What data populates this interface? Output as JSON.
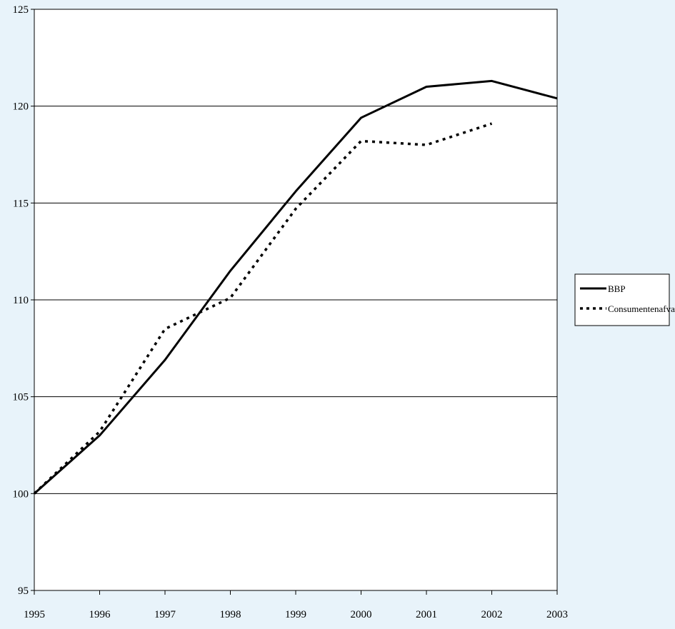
{
  "chart_data": {
    "type": "line",
    "title": "",
    "xlabel": "",
    "ylabel": "",
    "x": [
      1995,
      1996,
      1997,
      1998,
      1999,
      2000,
      2001,
      2002,
      2003
    ],
    "xlim": [
      1995,
      2003
    ],
    "ylim": [
      95,
      125
    ],
    "yticks": [
      95,
      100,
      105,
      110,
      115,
      120,
      125
    ],
    "grid": "horizontal",
    "legend_position": "right",
    "plot_background": "#ffffff",
    "page_background": "#e8f3fa",
    "series": [
      {
        "name": "BBP",
        "style": "solid",
        "color": "#000000",
        "values": [
          100,
          103.0,
          106.9,
          111.5,
          115.6,
          119.4,
          121.0,
          121.3,
          120.4
        ]
      },
      {
        "name": "Consumentenafval",
        "style": "dotted",
        "color": "#000000",
        "values": [
          100,
          103.2,
          108.5,
          110.1,
          114.7,
          118.2,
          118.0,
          119.1,
          null
        ]
      }
    ]
  }
}
